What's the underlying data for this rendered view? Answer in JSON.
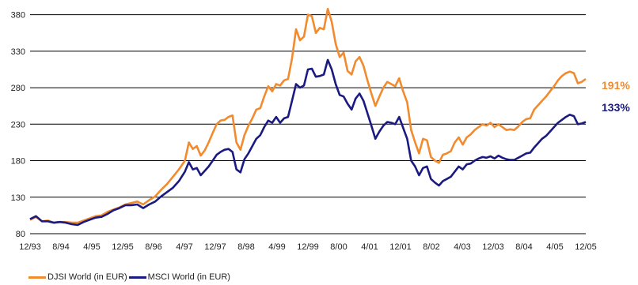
{
  "chart_data": {
    "type": "line",
    "ylim": [
      80,
      390
    ],
    "yticks": [
      80,
      130,
      180,
      230,
      280,
      330,
      380
    ],
    "xtick_labels": [
      "12/93",
      "8/94",
      "4/95",
      "12/95",
      "8/96",
      "4/97",
      "12/97",
      "8/98",
      "4/99",
      "12/99",
      "8/00",
      "4/01",
      "12/01",
      "8/02",
      "4/03",
      "12/03",
      "8/04",
      "4/05",
      "12/05"
    ],
    "grid": "horizontal",
    "legend_position": "bottom-left",
    "series": [
      {
        "name": "DJSI World (in EUR)",
        "color": "#f28a2e",
        "end_label": "191%",
        "values": [
          [
            0,
            99
          ],
          [
            3,
            103
          ],
          [
            6,
            97
          ],
          [
            9,
            98
          ],
          [
            12,
            95
          ],
          [
            15,
            96
          ],
          [
            18,
            96
          ],
          [
            21,
            95
          ],
          [
            24,
            95
          ],
          [
            27,
            98
          ],
          [
            30,
            101
          ],
          [
            33,
            104
          ],
          [
            36,
            105
          ],
          [
            39,
            110
          ],
          [
            42,
            113
          ],
          [
            45,
            116
          ],
          [
            48,
            120
          ],
          [
            51,
            122
          ],
          [
            54,
            124
          ],
          [
            57,
            120
          ],
          [
            60,
            126
          ],
          [
            63,
            131
          ],
          [
            66,
            140
          ],
          [
            69,
            148
          ],
          [
            72,
            158
          ],
          [
            75,
            168
          ],
          [
            78,
            180
          ],
          [
            80,
            205
          ],
          [
            82,
            196
          ],
          [
            84,
            200
          ],
          [
            86,
            187
          ],
          [
            88,
            194
          ],
          [
            90,
            205
          ],
          [
            92,
            218
          ],
          [
            94,
            230
          ],
          [
            96,
            235
          ],
          [
            98,
            236
          ],
          [
            100,
            240
          ],
          [
            102,
            242
          ],
          [
            104,
            205
          ],
          [
            106,
            195
          ],
          [
            108,
            215
          ],
          [
            110,
            228
          ],
          [
            112,
            238
          ],
          [
            114,
            250
          ],
          [
            116,
            252
          ],
          [
            118,
            268
          ],
          [
            120,
            282
          ],
          [
            122,
            275
          ],
          [
            124,
            285
          ],
          [
            126,
            283
          ],
          [
            128,
            290
          ],
          [
            130,
            292
          ],
          [
            132,
            320
          ],
          [
            134,
            360
          ],
          [
            136,
            345
          ],
          [
            138,
            350
          ],
          [
            140,
            380
          ],
          [
            142,
            378
          ],
          [
            144,
            355
          ],
          [
            146,
            362
          ],
          [
            148,
            360
          ],
          [
            150,
            388
          ],
          [
            152,
            370
          ],
          [
            154,
            340
          ],
          [
            156,
            322
          ],
          [
            158,
            328
          ],
          [
            160,
            303
          ],
          [
            162,
            298
          ],
          [
            164,
            316
          ],
          [
            166,
            322
          ],
          [
            168,
            310
          ],
          [
            170,
            290
          ],
          [
            172,
            272
          ],
          [
            174,
            255
          ],
          [
            176,
            268
          ],
          [
            178,
            280
          ],
          [
            180,
            288
          ],
          [
            182,
            285
          ],
          [
            184,
            282
          ],
          [
            186,
            293
          ],
          [
            188,
            275
          ],
          [
            190,
            260
          ],
          [
            192,
            222
          ],
          [
            194,
            205
          ],
          [
            196,
            190
          ],
          [
            198,
            210
          ],
          [
            200,
            208
          ],
          [
            202,
            185
          ],
          [
            204,
            180
          ],
          [
            206,
            177
          ],
          [
            208,
            188
          ],
          [
            210,
            190
          ],
          [
            212,
            193
          ],
          [
            214,
            205
          ],
          [
            216,
            212
          ],
          [
            218,
            202
          ],
          [
            220,
            212
          ],
          [
            222,
            216
          ],
          [
            224,
            222
          ],
          [
            226,
            226
          ],
          [
            228,
            230
          ],
          [
            230,
            228
          ],
          [
            232,
            232
          ],
          [
            234,
            226
          ],
          [
            236,
            230
          ],
          [
            238,
            226
          ],
          [
            240,
            222
          ],
          [
            242,
            223
          ],
          [
            244,
            222
          ],
          [
            246,
            227
          ],
          [
            248,
            233
          ],
          [
            250,
            237
          ],
          [
            252,
            238
          ],
          [
            254,
            250
          ],
          [
            256,
            256
          ],
          [
            258,
            262
          ],
          [
            260,
            268
          ],
          [
            262,
            275
          ],
          [
            264,
            282
          ],
          [
            266,
            290
          ],
          [
            268,
            296
          ],
          [
            270,
            300
          ],
          [
            272,
            302
          ],
          [
            274,
            300
          ],
          [
            276,
            286
          ],
          [
            278,
            288
          ],
          [
            280,
            292
          ]
        ]
      },
      {
        "name": "MSCI World (in EUR)",
        "color": "#1a1a80",
        "end_label": "133%",
        "values": [
          [
            0,
            100
          ],
          [
            3,
            104
          ],
          [
            6,
            97
          ],
          [
            9,
            97
          ],
          [
            12,
            95
          ],
          [
            15,
            96
          ],
          [
            18,
            95
          ],
          [
            21,
            93
          ],
          [
            24,
            92
          ],
          [
            27,
            96
          ],
          [
            30,
            99
          ],
          [
            33,
            102
          ],
          [
            36,
            103
          ],
          [
            39,
            107
          ],
          [
            42,
            112
          ],
          [
            45,
            115
          ],
          [
            48,
            119
          ],
          [
            51,
            119
          ],
          [
            54,
            120
          ],
          [
            57,
            115
          ],
          [
            60,
            120
          ],
          [
            63,
            124
          ],
          [
            66,
            131
          ],
          [
            69,
            137
          ],
          [
            72,
            143
          ],
          [
            75,
            152
          ],
          [
            78,
            165
          ],
          [
            80,
            178
          ],
          [
            82,
            168
          ],
          [
            84,
            170
          ],
          [
            86,
            160
          ],
          [
            88,
            166
          ],
          [
            90,
            172
          ],
          [
            92,
            180
          ],
          [
            94,
            188
          ],
          [
            96,
            192
          ],
          [
            98,
            195
          ],
          [
            100,
            196
          ],
          [
            102,
            192
          ],
          [
            104,
            168
          ],
          [
            106,
            164
          ],
          [
            108,
            182
          ],
          [
            110,
            190
          ],
          [
            112,
            200
          ],
          [
            114,
            210
          ],
          [
            116,
            215
          ],
          [
            118,
            226
          ],
          [
            120,
            235
          ],
          [
            122,
            232
          ],
          [
            124,
            240
          ],
          [
            126,
            232
          ],
          [
            128,
            238
          ],
          [
            130,
            240
          ],
          [
            132,
            262
          ],
          [
            134,
            285
          ],
          [
            136,
            280
          ],
          [
            138,
            283
          ],
          [
            140,
            305
          ],
          [
            142,
            306
          ],
          [
            144,
            295
          ],
          [
            146,
            296
          ],
          [
            148,
            298
          ],
          [
            150,
            318
          ],
          [
            152,
            305
          ],
          [
            154,
            285
          ],
          [
            156,
            270
          ],
          [
            158,
            268
          ],
          [
            160,
            258
          ],
          [
            162,
            250
          ],
          [
            164,
            265
          ],
          [
            166,
            272
          ],
          [
            168,
            262
          ],
          [
            170,
            245
          ],
          [
            172,
            228
          ],
          [
            174,
            210
          ],
          [
            176,
            220
          ],
          [
            178,
            228
          ],
          [
            180,
            233
          ],
          [
            182,
            232
          ],
          [
            184,
            230
          ],
          [
            186,
            240
          ],
          [
            188,
            225
          ],
          [
            190,
            210
          ],
          [
            192,
            180
          ],
          [
            194,
            172
          ],
          [
            196,
            160
          ],
          [
            198,
            170
          ],
          [
            200,
            172
          ],
          [
            202,
            155
          ],
          [
            204,
            150
          ],
          [
            206,
            146
          ],
          [
            208,
            152
          ],
          [
            210,
            155
          ],
          [
            212,
            158
          ],
          [
            214,
            165
          ],
          [
            216,
            172
          ],
          [
            218,
            168
          ],
          [
            220,
            175
          ],
          [
            222,
            176
          ],
          [
            224,
            180
          ],
          [
            226,
            183
          ],
          [
            228,
            185
          ],
          [
            230,
            184
          ],
          [
            232,
            186
          ],
          [
            234,
            183
          ],
          [
            236,
            187
          ],
          [
            238,
            184
          ],
          [
            240,
            182
          ],
          [
            242,
            181
          ],
          [
            244,
            181
          ],
          [
            246,
            184
          ],
          [
            248,
            187
          ],
          [
            250,
            190
          ],
          [
            252,
            191
          ],
          [
            254,
            198
          ],
          [
            256,
            204
          ],
          [
            258,
            210
          ],
          [
            260,
            214
          ],
          [
            262,
            220
          ],
          [
            264,
            226
          ],
          [
            266,
            232
          ],
          [
            268,
            236
          ],
          [
            270,
            240
          ],
          [
            272,
            243
          ],
          [
            274,
            241
          ],
          [
            276,
            230
          ],
          [
            278,
            231
          ],
          [
            280,
            233
          ]
        ]
      }
    ]
  }
}
